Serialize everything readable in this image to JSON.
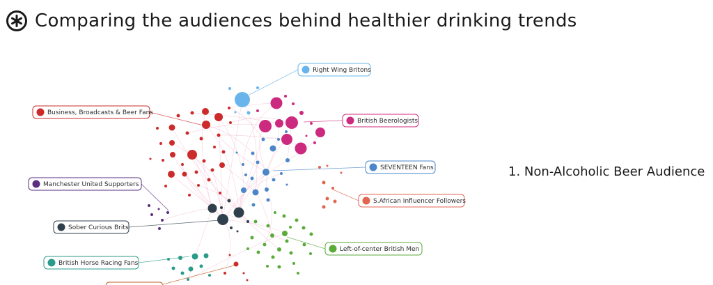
{
  "header": {
    "title": "Comparing the audiences behind healthier drinking trends",
    "logo_icon": "asterisk-circle-logo"
  },
  "side_label": "1. Non-Alcoholic Beer Audience",
  "legend": [
    {
      "key": "right_wing",
      "label": "Right Wing Britons",
      "color": "#6ab4ec"
    },
    {
      "key": "business",
      "label": "Business, Broadcasts & Beer Fans",
      "color": "#cc2b2b"
    },
    {
      "key": "beerologists",
      "label": "British Beerologists",
      "color": "#cc2a7e"
    },
    {
      "key": "seventeen",
      "label": "SEVENTEEN Fans",
      "color": "#4a86c8"
    },
    {
      "key": "manutd",
      "label": "Manchester United Supporters",
      "color": "#5b2d7e"
    },
    {
      "key": "safrican",
      "label": "S.African Influencer Followers",
      "color": "#e06650"
    },
    {
      "key": "sober",
      "label": "Sober Curious Brits",
      "color": "#2f3f4c"
    },
    {
      "key": "leftcenter",
      "label": "Left-of-center British Men",
      "color": "#5aab3a"
    },
    {
      "key": "horseracing",
      "label": "British Horse Racing Fans",
      "color": "#2a9a8a"
    }
  ]
}
